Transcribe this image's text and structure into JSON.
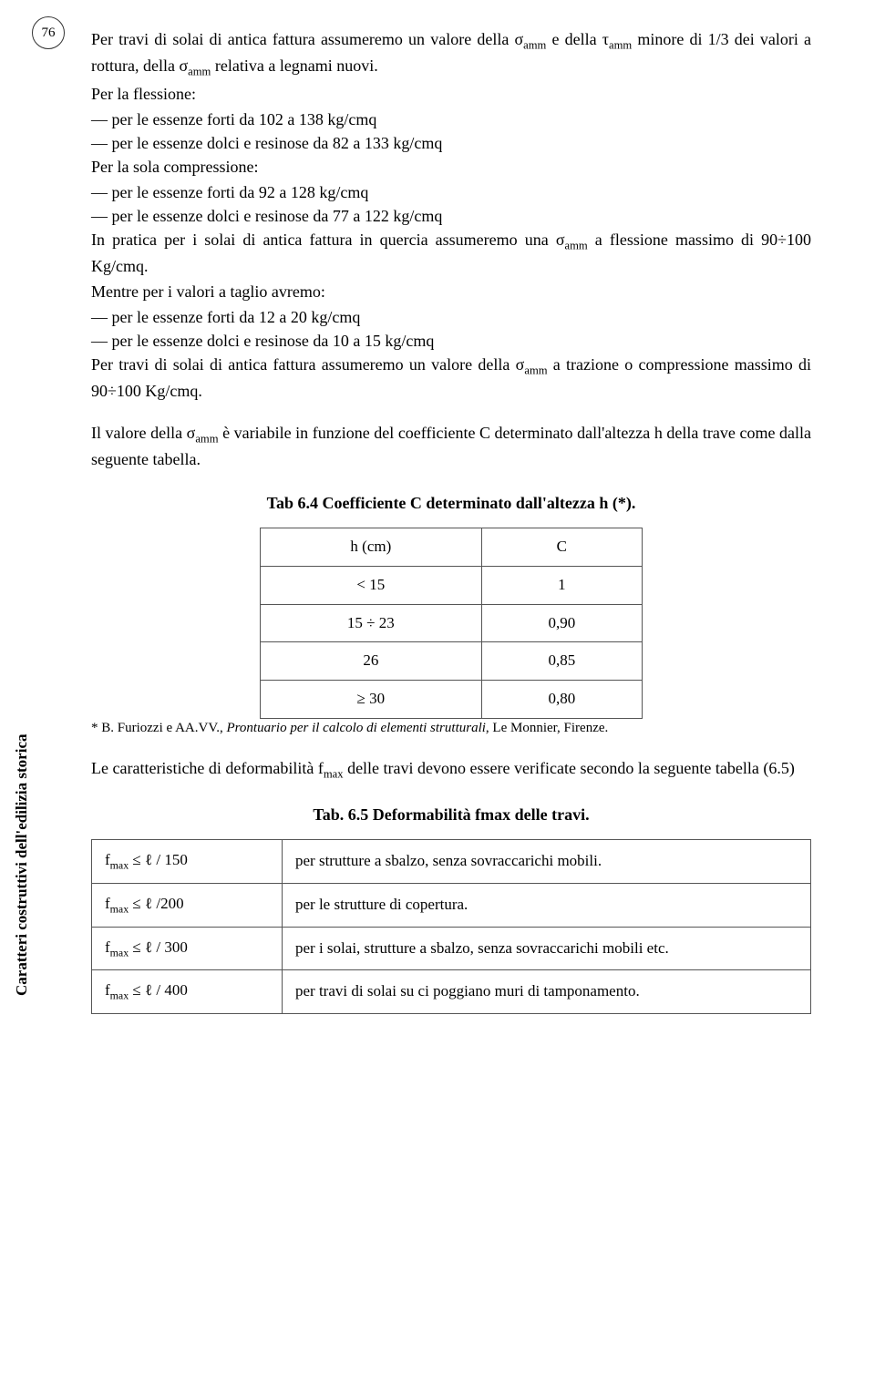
{
  "page_number": "76",
  "side_label": "Caratteri costruttivi dell'edilizia storica",
  "para1_a": "Per travi di solai di antica fattura assumeremo un valore della σ",
  "para1_b": " e della τ",
  "para1_c": " minore di 1/3 dei valori a rottura, della σ",
  "para1_d": " relativa a legnami nuovi.",
  "sub_amm": "amm",
  "flessione_head": "Per la flessione:",
  "flessione_1": "— per le essenze forti da 102 a 138 kg/cmq",
  "flessione_2": "— per le essenze dolci e resinose da 82 a 133 kg/cmq",
  "compressione_head": "Per la sola compressione:",
  "compressione_1": "— per le essenze forti da 92 a 128 kg/cmq",
  "compressione_2": "— per le essenze dolci e resinose da 77 a 122 kg/cmq",
  "pratica_a": "In pratica per i solai di antica fattura in quercia assumeremo una σ",
  "pratica_b": " a flessione massimo di 90÷100 Kg/cmq.",
  "taglio_head": "Mentre per i valori a taglio avremo:",
  "taglio_1": "— per le essenze forti da 12 a 20 kg/cmq",
  "taglio_2": "— per le essenze dolci e resinose da 10 a 15 kg/cmq",
  "trazione_a": "Per travi di solai di antica fattura assumeremo un valore della σ",
  "trazione_b": " a trazione o compressione massimo di 90÷100 Kg/cmq.",
  "valore_a": "Il valore della σ",
  "valore_b": " è variabile in funzione del coefficiente C determinato dall'altezza h della trave come dalla seguente tabella.",
  "tab64_caption": "Tab 6.4 Coefficiente C determinato dall'altezza h (*).",
  "tab64": {
    "headers": [
      "h (cm)",
      "C"
    ],
    "rows": [
      [
        "< 15",
        "1"
      ],
      [
        "15 ÷ 23",
        "0,90"
      ],
      [
        "26",
        "0,85"
      ],
      [
        "≥ 30",
        "0,80"
      ]
    ]
  },
  "footnote_a": "* B. Furiozzi e AA.VV., ",
  "footnote_ital": "Prontuario per il calcolo di elementi strutturali",
  "footnote_b": ", Le Monnier, Firenze.",
  "deform_intro_a": "Le caratteristiche di deformabilità f",
  "deform_intro_b": " delle travi devono essere verificate secondo la seguente tabella (6.5)",
  "sub_max": "max",
  "tab65_caption": "Tab. 6.5 Deformabilità fmax delle travi.",
  "tab65": {
    "rows": [
      {
        "f1a": "f",
        "f1b": " ≤ ℓ / 150",
        "desc": "per strutture a sbalzo, senza sovraccarichi mobili."
      },
      {
        "f1a": "f",
        "f1b": " ≤ ℓ /200",
        "desc": "per le strutture di copertura."
      },
      {
        "f1a": "f",
        "f1b": " ≤ ℓ / 300",
        "desc": "per i solai, strutture a sbalzo, senza sovraccarichi mobili etc."
      },
      {
        "f1a": "f",
        "f1b": " ≤ ℓ / 400",
        "desc": "per travi di solai su ci poggiano muri di tamponamento."
      }
    ]
  }
}
